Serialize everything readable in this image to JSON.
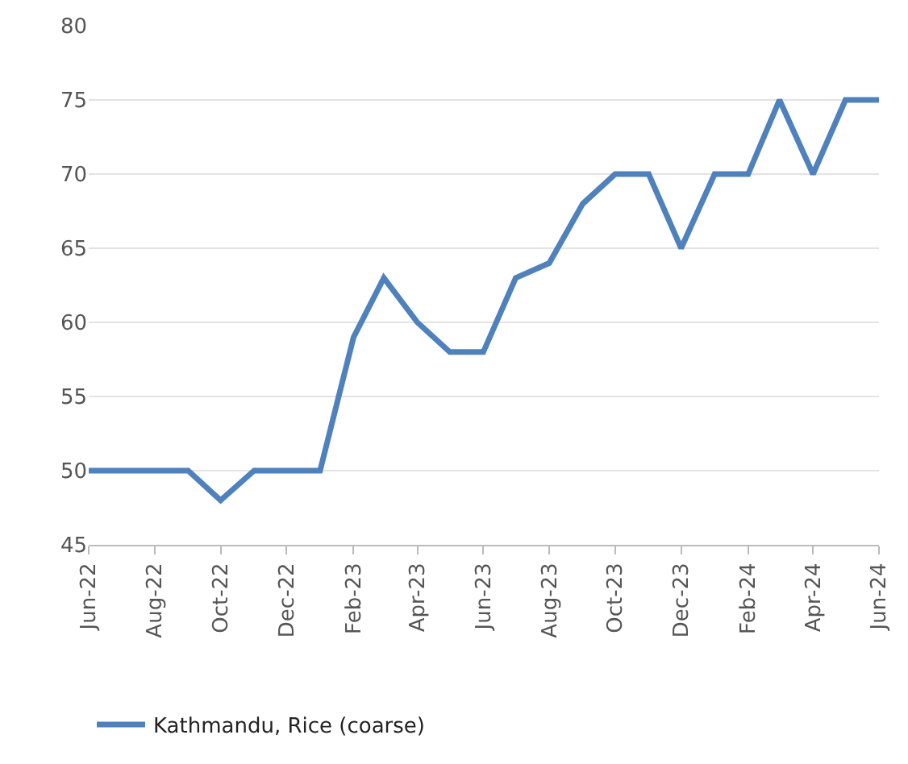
{
  "chart_data": {
    "type": "line",
    "x": [
      "2022-06",
      "2022-07",
      "2022-08",
      "2022-09",
      "2022-10",
      "2022-11",
      "2022-12",
      "2023-01",
      "2023-02",
      "2023-03",
      "2023-04",
      "2023-05",
      "2023-06",
      "2023-07",
      "2023-08",
      "2023-09",
      "2023-10",
      "2023-11",
      "2023-12",
      "2024-01",
      "2024-02",
      "2024-03",
      "2024-04",
      "2024-05",
      "2024-06"
    ],
    "series": [
      {
        "name": "Kathmandu, Rice (coarse)",
        "color": "#4f81bd",
        "values": [
          50,
          50,
          50,
          50,
          48,
          50,
          50,
          50,
          59,
          63,
          60,
          58,
          58,
          63,
          64,
          68,
          70,
          70,
          65,
          70,
          70,
          75,
          70,
          75,
          75
        ]
      }
    ],
    "xlim": [
      "2022-06",
      "2024-06"
    ],
    "xticks": [
      {
        "value": "2022-06",
        "label": "Jun-22"
      },
      {
        "value": "2022-08",
        "label": "Aug-22"
      },
      {
        "value": "2022-10",
        "label": "Oct-22"
      },
      {
        "value": "2022-12",
        "label": "Dec-22"
      },
      {
        "value": "2023-02",
        "label": "Feb-23"
      },
      {
        "value": "2023-04",
        "label": "Apr-23"
      },
      {
        "value": "2023-06",
        "label": "Jun-23"
      },
      {
        "value": "2023-08",
        "label": "Aug-23"
      },
      {
        "value": "2023-10",
        "label": "Oct-23"
      },
      {
        "value": "2023-12",
        "label": "Dec-23"
      },
      {
        "value": "2024-02",
        "label": "Feb-24"
      },
      {
        "value": "2024-04",
        "label": "Apr-24"
      },
      {
        "value": "2024-06",
        "label": "Jun-24"
      }
    ],
    "ylim": [
      45,
      80
    ],
    "yticks": [
      45,
      50,
      55,
      60,
      65,
      70,
      75,
      80
    ],
    "grid": "y",
    "legend": "bottom left",
    "marker": "none",
    "line_style": "solid"
  }
}
